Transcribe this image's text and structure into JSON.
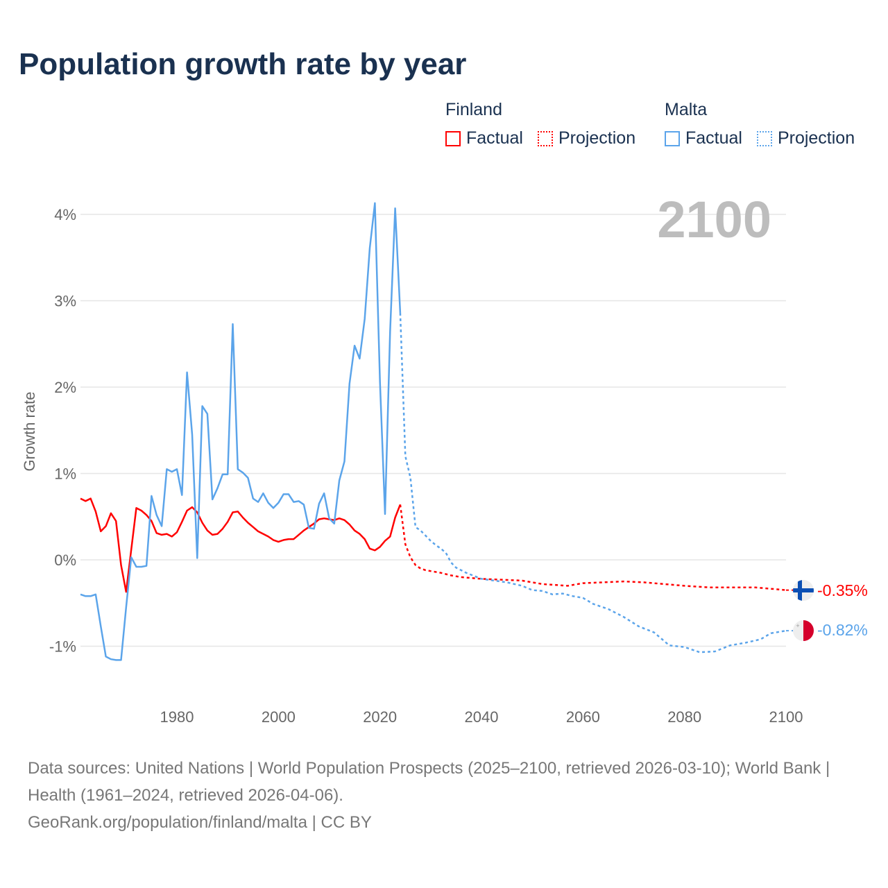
{
  "title": "Population growth rate by year",
  "legend": {
    "groups": [
      {
        "name": "Finland",
        "color": "#ff0000",
        "factual": "Factual",
        "projection": "Projection"
      },
      {
        "name": "Malta",
        "color": "#5ba4ea",
        "factual": "Factual",
        "projection": "Projection"
      }
    ]
  },
  "year_label": "2100",
  "end_labels": {
    "finland": "-0.35%",
    "malta": "-0.82%"
  },
  "sources": {
    "line1": "Data sources: United Nations | World Population Prospects (2025–2100, retrieved 2026-03-10); World Bank | Health (1961–2024, retrieved 2026-04-06).",
    "line2": "GeoRank.org/population/finland/malta | CC BY"
  },
  "chart_data": {
    "type": "line",
    "title": "Population growth rate by year",
    "xlabel": "",
    "ylabel": "Growth rate",
    "xlim": [
      1961,
      2100
    ],
    "ylim": [
      -1.5,
      4.3
    ],
    "x_ticks": [
      1980,
      2000,
      2020,
      2040,
      2060,
      2080,
      2100
    ],
    "x_tick_labels": [
      "1980",
      "2000",
      "2020",
      "2040",
      "2060",
      "2080",
      "2100"
    ],
    "y_ticks": [
      -1,
      0,
      1,
      2,
      3,
      4
    ],
    "y_tick_labels": [
      "-1%",
      "0%",
      "1%",
      "2%",
      "3%",
      "4%"
    ],
    "grid": true,
    "legend_position": "top-right",
    "series": [
      {
        "name": "Finland Factual",
        "color": "#ff0000",
        "dashed": false,
        "start_year": 1961,
        "values": [
          0.71,
          0.68,
          0.71,
          0.56,
          0.33,
          0.39,
          0.54,
          0.45,
          -0.06,
          -0.37,
          0.12,
          0.6,
          0.57,
          0.52,
          0.45,
          0.31,
          0.29,
          0.3,
          0.27,
          0.32,
          0.44,
          0.57,
          0.61,
          0.55,
          0.43,
          0.34,
          0.29,
          0.3,
          0.36,
          0.44,
          0.55,
          0.56,
          0.49,
          0.43,
          0.38,
          0.33,
          0.3,
          0.27,
          0.23,
          0.21,
          0.23,
          0.24,
          0.24,
          0.29,
          0.34,
          0.38,
          0.42,
          0.47,
          0.48,
          0.47,
          0.46,
          0.48,
          0.46,
          0.41,
          0.34,
          0.3,
          0.24,
          0.13,
          0.11,
          0.15,
          0.22,
          0.27,
          0.49,
          0.64
        ]
      },
      {
        "name": "Finland Projection",
        "color": "#ff0000",
        "dashed": true,
        "points": [
          [
            2024,
            0.64
          ],
          [
            2025,
            0.18
          ],
          [
            2026,
            0.03
          ],
          [
            2027,
            -0.06
          ],
          [
            2028,
            -0.1
          ],
          [
            2029,
            -0.12
          ],
          [
            2030,
            -0.13
          ],
          [
            2032,
            -0.15
          ],
          [
            2034,
            -0.18
          ],
          [
            2036,
            -0.2
          ],
          [
            2040,
            -0.22
          ],
          [
            2044,
            -0.23
          ],
          [
            2048,
            -0.24
          ],
          [
            2052,
            -0.28
          ],
          [
            2057,
            -0.3
          ],
          [
            2060,
            -0.27
          ],
          [
            2064,
            -0.26
          ],
          [
            2068,
            -0.25
          ],
          [
            2072,
            -0.26
          ],
          [
            2076,
            -0.28
          ],
          [
            2080,
            -0.3
          ],
          [
            2085,
            -0.32
          ],
          [
            2090,
            -0.32
          ],
          [
            2094,
            -0.32
          ],
          [
            2098,
            -0.34
          ],
          [
            2100,
            -0.35
          ]
        ]
      },
      {
        "name": "Malta Factual",
        "color": "#5ba4ea",
        "dashed": false,
        "start_year": 1961,
        "values": [
          -0.4,
          -0.42,
          -0.42,
          -0.4,
          -0.77,
          -1.12,
          -1.15,
          -1.16,
          -1.16,
          -0.55,
          0.03,
          -0.08,
          -0.08,
          -0.07,
          0.74,
          0.52,
          0.39,
          1.05,
          1.02,
          1.05,
          0.75,
          2.17,
          1.45,
          0.02,
          1.78,
          1.69,
          0.7,
          0.83,
          0.99,
          0.99,
          2.73,
          1.05,
          1.01,
          0.95,
          0.71,
          0.67,
          0.77,
          0.66,
          0.6,
          0.66,
          0.76,
          0.76,
          0.67,
          0.68,
          0.64,
          0.37,
          0.36,
          0.65,
          0.77,
          0.48,
          0.42,
          0.92,
          1.14,
          2.04,
          2.48,
          2.33,
          2.79,
          3.61,
          4.13,
          2.06,
          0.53,
          2.64,
          4.07,
          2.86
        ]
      },
      {
        "name": "Malta Projection",
        "color": "#5ba4ea",
        "dashed": true,
        "points": [
          [
            2024,
            2.86
          ],
          [
            2025,
            1.2
          ],
          [
            2026,
            0.95
          ],
          [
            2027,
            0.38
          ],
          [
            2028,
            0.34
          ],
          [
            2029,
            0.28
          ],
          [
            2030,
            0.22
          ],
          [
            2031,
            0.17
          ],
          [
            2032,
            0.13
          ],
          [
            2033,
            0.08
          ],
          [
            2034,
            -0.03
          ],
          [
            2035,
            -0.09
          ],
          [
            2037,
            -0.15
          ],
          [
            2040,
            -0.22
          ],
          [
            2045,
            -0.26
          ],
          [
            2048,
            -0.3
          ],
          [
            2050,
            -0.35
          ],
          [
            2052,
            -0.36
          ],
          [
            2054,
            -0.4
          ],
          [
            2056,
            -0.39
          ],
          [
            2058,
            -0.42
          ],
          [
            2060,
            -0.44
          ],
          [
            2062,
            -0.51
          ],
          [
            2065,
            -0.57
          ],
          [
            2068,
            -0.66
          ],
          [
            2071,
            -0.77
          ],
          [
            2074,
            -0.84
          ],
          [
            2077,
            -0.99
          ],
          [
            2080,
            -1.01
          ],
          [
            2083,
            -1.07
          ],
          [
            2086,
            -1.06
          ],
          [
            2089,
            -0.99
          ],
          [
            2092,
            -0.96
          ],
          [
            2095,
            -0.92
          ],
          [
            2097,
            -0.85
          ],
          [
            2100,
            -0.82
          ]
        ]
      }
    ]
  }
}
